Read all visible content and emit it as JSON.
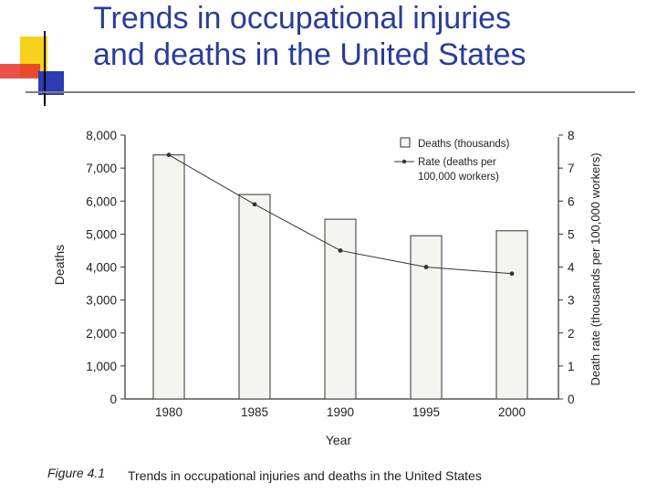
{
  "slide": {
    "title_line1": "Trends in occupational injuries",
    "title_line2": "and deaths in the United States"
  },
  "colors": {
    "title": "#2a3d9a",
    "bar_fill": "#f4f4f0",
    "bar_stroke": "#333333",
    "line": "#333333"
  },
  "chart_data": {
    "type": "bar",
    "categories": [
      "1980",
      "1985",
      "1990",
      "1995",
      "2000"
    ],
    "series": [
      {
        "name": "Deaths (thousands)",
        "axis": "left",
        "type": "bar",
        "values": [
          7400,
          6200,
          5450,
          4950,
          5100
        ]
      },
      {
        "name": "Rate (deaths per 100,000 workers)",
        "axis": "right",
        "type": "line",
        "values": [
          7.4,
          5.9,
          4.5,
          4.0,
          3.8
        ]
      }
    ],
    "xlabel": "Year",
    "ylabel": "Deaths",
    "y2label": "Death rate (thousands per 100,000 workers)",
    "ylim": [
      0,
      8000
    ],
    "y2lim": [
      0,
      8
    ],
    "yticks": [
      "0",
      "1,000",
      "2,000",
      "3,000",
      "4,000",
      "5,000",
      "6,000",
      "7,000",
      "8,000"
    ],
    "y2ticks": [
      "0",
      "1",
      "2",
      "3",
      "4",
      "5",
      "6",
      "7",
      "8"
    ],
    "legend": {
      "deaths_label": "Deaths (thousands)",
      "rate_line1": "Rate (deaths per",
      "rate_line2": "100,000 workers)",
      "position": "top-right"
    },
    "caption": {
      "label": "Figure 4.1",
      "text": "Trends in occupational injuries and deaths in the United States"
    }
  }
}
